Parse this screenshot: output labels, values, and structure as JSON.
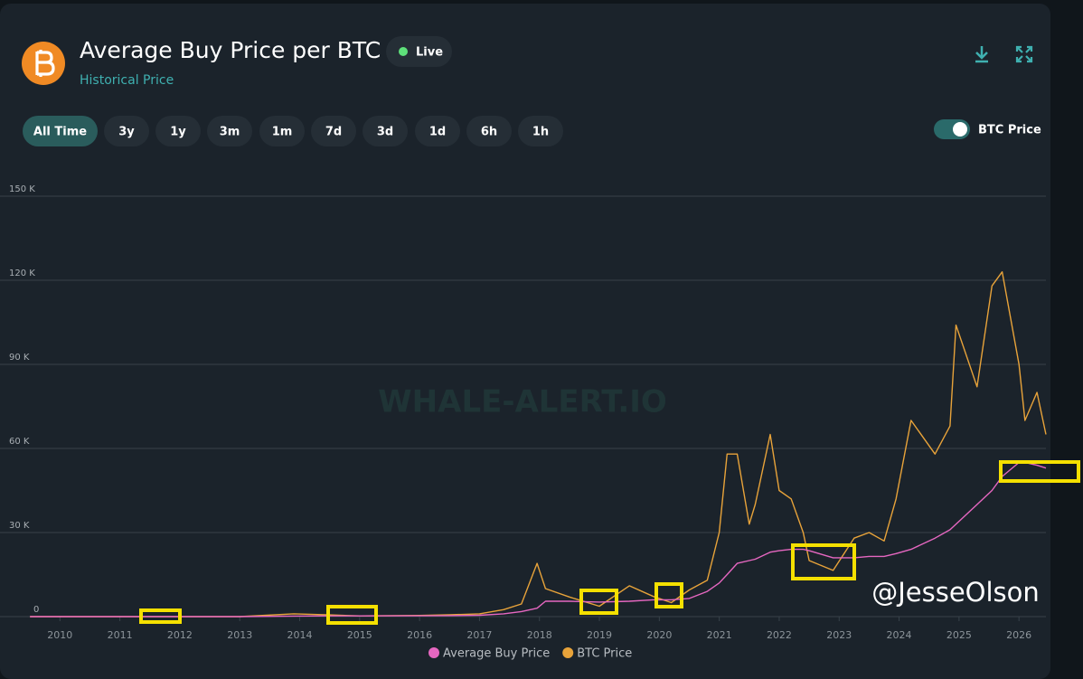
{
  "header": {
    "title": "Average Buy Price per BTC",
    "subtitle": "Historical Price",
    "status": "Live"
  },
  "ranges": [
    "All Time",
    "3y",
    "1y",
    "3m",
    "1m",
    "7d",
    "3d",
    "1d",
    "6h",
    "1h"
  ],
  "toggle_label": "BTC Price",
  "watermark": "WHALE-ALERT.IO",
  "credit": "@JesseOlson",
  "chart_data": {
    "type": "line",
    "x": [
      2009.5,
      2010.5,
      2011.5,
      2012.5,
      2013.0,
      2013.9,
      2014.5,
      2015.0,
      2016.0,
      2016.5,
      2017.0,
      2017.4,
      2017.7,
      2017.96,
      2018.1,
      2018.5,
      2019.0,
      2019.5,
      2019.9,
      2020.2,
      2020.5,
      2020.8,
      2021.0,
      2021.13,
      2021.3,
      2021.5,
      2021.6,
      2021.85,
      2022.0,
      2022.2,
      2022.4,
      2022.5,
      2022.9,
      2023.25,
      2023.5,
      2023.75,
      2023.95,
      2024.2,
      2024.6,
      2024.85,
      2024.95,
      2025.3,
      2025.55,
      2025.72,
      2026.0,
      2026.1,
      2026.3,
      2026.45
    ],
    "series": [
      {
        "name": "Average Buy Price",
        "color": "#e667c1",
        "values": [
          0,
          0,
          5,
          5,
          8,
          200,
          250,
          250,
          300,
          350,
          500,
          1000,
          1800,
          3000,
          5500,
          5500,
          5200,
          5500,
          6000,
          6000,
          6500,
          9000,
          12000,
          15000,
          19000,
          20000,
          20500,
          23000,
          23500,
          24000,
          24000,
          23500,
          21000,
          21000,
          21500,
          21500,
          22500,
          24000,
          28000,
          31000,
          33000,
          40000,
          45000,
          50000,
          55000,
          55000,
          54000,
          53000
        ]
      },
      {
        "name": "BTC Price",
        "color": "#e8a33a",
        "values": [
          0,
          0,
          15,
          7,
          13,
          1000,
          600,
          250,
          430,
          650,
          1000,
          2500,
          4500,
          19000,
          10000,
          7000,
          3700,
          11000,
          7200,
          5000,
          9500,
          13000,
          30000,
          58000,
          58000,
          33000,
          40000,
          65000,
          45000,
          42000,
          30000,
          20000,
          16500,
          28000,
          30000,
          27000,
          42000,
          70000,
          58000,
          68000,
          104000,
          82000,
          118000,
          123000,
          90000,
          70000,
          80000,
          65000
        ]
      }
    ],
    "xlim": [
      2009.0,
      2026.45
    ],
    "xticks": [
      2010,
      2011,
      2012,
      2013,
      2014,
      2015,
      2016,
      2017,
      2018,
      2019,
      2020,
      2021,
      2022,
      2023,
      2024,
      2025,
      2026
    ],
    "ylim": [
      0,
      150000
    ],
    "yticks": [
      0,
      {
        "value": 30000,
        "label": "30 K"
      },
      {
        "value": 60000,
        "label": "60 K"
      },
      {
        "value": 90000,
        "label": "90 K"
      },
      {
        "value": 120000,
        "label": "120 K"
      },
      {
        "value": 150000,
        "label": "150 K"
      }
    ],
    "grid": true
  }
}
